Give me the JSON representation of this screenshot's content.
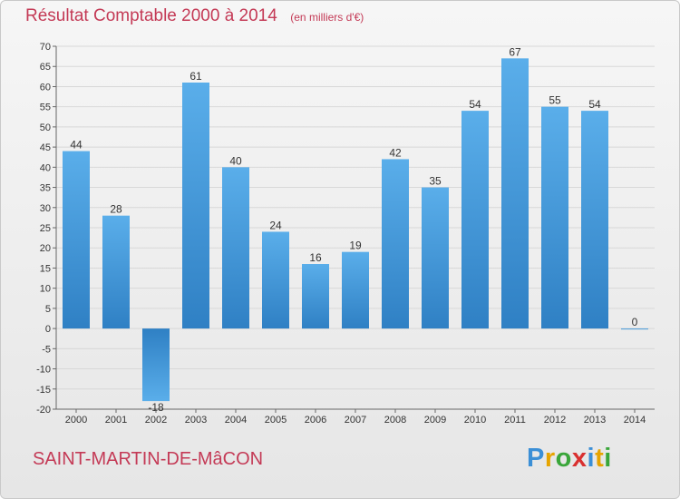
{
  "title": "Résultat Comptable 2000 à 2014",
  "unit": "(en milliers d'€)",
  "commune": "SAINT-MARTIN-DE-MâCON",
  "logo": {
    "text": "Proxiti",
    "letters": [
      {
        "ch": "P",
        "color": "#3b8fd6"
      },
      {
        "ch": "r",
        "color": "#e6a400"
      },
      {
        "ch": "o",
        "color": "#3aa63a"
      },
      {
        "ch": "x",
        "color": "#d9302f"
      },
      {
        "ch": "i",
        "color": "#3b8fd6"
      },
      {
        "ch": "t",
        "color": "#e6a400"
      },
      {
        "ch": "i",
        "color": "#3aa63a"
      }
    ]
  },
  "colors": {
    "bar_top": "#5aaeea",
    "bar_bottom": "#2f80c4",
    "title": "#c43a56"
  },
  "chart_data": {
    "type": "bar",
    "categories": [
      "2000",
      "2001",
      "2002",
      "2003",
      "2004",
      "2005",
      "2006",
      "2007",
      "2008",
      "2009",
      "2010",
      "2011",
      "2012",
      "2013",
      "2014"
    ],
    "values": [
      44,
      28,
      -18,
      61,
      40,
      24,
      16,
      19,
      42,
      35,
      54,
      67,
      55,
      54,
      0
    ],
    "ylim": [
      -20,
      70
    ],
    "yticks": [
      70,
      65,
      60,
      55,
      50,
      45,
      40,
      35,
      30,
      25,
      20,
      15,
      10,
      5,
      0,
      -5,
      -10,
      -15,
      -20
    ],
    "grid": true,
    "legend": "none"
  }
}
